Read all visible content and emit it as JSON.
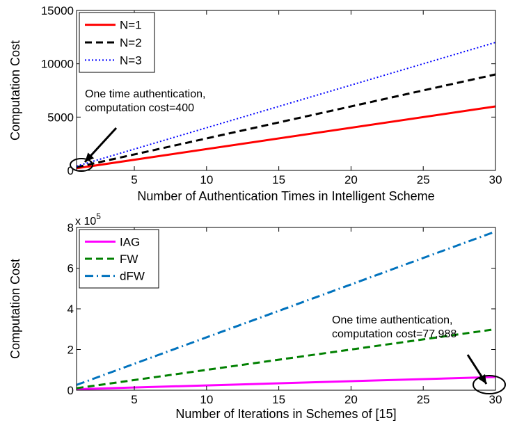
{
  "chart_data": [
    {
      "type": "line",
      "xlabel": "Number of Authentication Times in Intelligent Scheme",
      "ylabel": "Computation Cost",
      "xlim": [
        1,
        30
      ],
      "ylim": [
        0,
        15000
      ],
      "xticks": [
        5,
        10,
        15,
        20,
        25,
        30
      ],
      "yticks": [
        0,
        5000,
        10000,
        15000
      ],
      "ytick_labels": [
        "0",
        "5000",
        "10000",
        "15000"
      ],
      "grid": false,
      "legend_position": "top-left",
      "series": [
        {
          "name": "N=1",
          "color": "#ff0000",
          "style": "solid",
          "x": [
            1,
            30
          ],
          "y": [
            200,
            6000
          ]
        },
        {
          "name": "N=2",
          "color": "#000000",
          "style": "dashed",
          "x": [
            1,
            30
          ],
          "y": [
            300,
            9000
          ]
        },
        {
          "name": "N=3",
          "color": "#0000ff",
          "style": "dotted",
          "x": [
            1,
            30
          ],
          "y": [
            400,
            12000
          ]
        }
      ],
      "annotation": {
        "lines": [
          "One time authentication,",
          "computation cost=400"
        ],
        "target": {
          "x": 1.3,
          "y": 400
        }
      }
    },
    {
      "type": "line",
      "xlabel": "Number of Iterations in Schemes of [15]",
      "ylabel": "Computation Cost",
      "xlim": [
        1,
        30
      ],
      "ylim": [
        0,
        800000
      ],
      "xticks": [
        5,
        10,
        15,
        20,
        25,
        30
      ],
      "yticks": [
        0,
        200000,
        400000,
        600000,
        800000
      ],
      "ytick_labels": [
        "0",
        "2",
        "4",
        "6",
        "8"
      ],
      "exponent_label": {
        "base": "x 10",
        "power": "5"
      },
      "grid": false,
      "legend_position": "top-left",
      "series": [
        {
          "name": "IAG",
          "color": "#ff00ff",
          "style": "solid",
          "x": [
            1,
            30
          ],
          "y": [
            5000,
            65000
          ]
        },
        {
          "name": "FW",
          "color": "#008000",
          "style": "dashed",
          "x": [
            1,
            30
          ],
          "y": [
            10000,
            300000
          ]
        },
        {
          "name": "dFW",
          "color": "#0072bd",
          "style": "dashdot",
          "x": [
            1,
            30
          ],
          "y": [
            26000,
            780000
          ]
        }
      ],
      "annotation": {
        "lines": [
          "One time authentication,",
          "computation cost=77,988"
        ],
        "target": {
          "x": 30,
          "y": 77988
        }
      }
    }
  ]
}
